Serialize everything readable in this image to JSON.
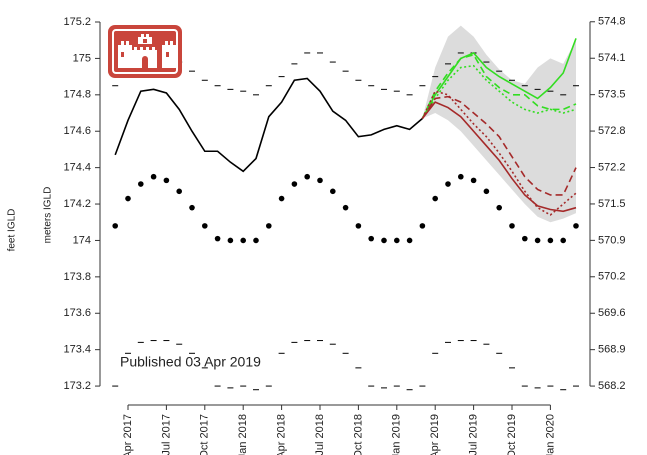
{
  "chart_data": {
    "type": "line",
    "y_label": "meters IGLD",
    "y_label_outer": "feet IGLD",
    "annotation": "Published 03 Apr 2019",
    "categories": [
      null,
      "Apr 2017",
      null,
      null,
      "Jul 2017",
      null,
      null,
      "Oct 2017",
      null,
      null,
      "Jan 2018",
      null,
      null,
      "Apr 2018",
      null,
      null,
      "Jul 2018",
      null,
      null,
      "Oct 2018",
      null,
      null,
      "Jan 2019",
      null,
      null,
      "Apr 2019",
      null,
      null,
      "Jul 2019",
      null,
      null,
      "Oct 2019",
      null,
      null,
      "Jan 2020",
      null,
      null
    ],
    "ylim": [
      173.096,
      175.255
    ],
    "yticks": [
      173.2,
      173.4,
      173.6,
      173.8,
      174.0,
      174.2,
      174.4,
      174.6,
      174.8,
      175.0,
      175.2
    ],
    "y2lim": [
      567.9,
      574.98
    ],
    "y2ticks": [
      {
        "value": 568.241,
        "label": "568.2"
      },
      {
        "value": 568.897,
        "label": "568.9"
      },
      {
        "value": 569.553,
        "label": "569.6"
      },
      {
        "value": 570.21,
        "label": "570.2"
      },
      {
        "value": 570.866,
        "label": "570.9"
      },
      {
        "value": 571.522,
        "label": "571.5"
      },
      {
        "value": 572.178,
        "label": "572.2"
      },
      {
        "value": 572.835,
        "label": "572.8"
      },
      {
        "value": 573.491,
        "label": "573.5"
      },
      {
        "value": 574.147,
        "label": "574.1"
      },
      {
        "value": 574.804,
        "label": "574.8"
      }
    ],
    "band": {
      "color": "#dcdcdc",
      "upper": [
        null,
        null,
        null,
        null,
        null,
        null,
        null,
        null,
        null,
        null,
        null,
        null,
        null,
        null,
        null,
        null,
        null,
        null,
        null,
        null,
        null,
        null,
        null,
        null,
        174.67,
        174.95,
        175.12,
        175.18,
        175.12,
        175.02,
        174.94,
        174.88,
        174.86,
        174.95,
        175.0,
        174.97,
        175.1
      ],
      "lower": [
        null,
        null,
        null,
        null,
        null,
        null,
        null,
        null,
        null,
        null,
        null,
        null,
        null,
        null,
        null,
        null,
        null,
        null,
        null,
        null,
        null,
        null,
        null,
        null,
        174.67,
        174.7,
        174.66,
        174.6,
        174.52,
        174.44,
        174.36,
        174.28,
        174.2,
        174.13,
        174.1,
        174.12,
        174.15
      ]
    },
    "series": [
      {
        "color": "#000000",
        "marker": "dash",
        "values": [
          174.85,
          174.9,
          174.97,
          175.03,
          175.03,
          174.98,
          174.93,
          174.88,
          174.85,
          174.83,
          174.82,
          174.8,
          174.85,
          174.9,
          174.97,
          175.03,
          175.03,
          174.98,
          174.93,
          174.88,
          174.85,
          174.83,
          174.82,
          174.8,
          174.85,
          174.9,
          174.97,
          175.03,
          175.03,
          174.98,
          174.93,
          174.88,
          174.85,
          174.83,
          174.82,
          174.8,
          174.85
        ]
      },
      {
        "color": "#000000",
        "marker": "dash",
        "values": [
          173.2,
          173.38,
          173.44,
          173.45,
          173.45,
          173.43,
          173.38,
          173.3,
          173.2,
          173.19,
          173.2,
          173.18,
          173.2,
          173.38,
          173.44,
          173.45,
          173.45,
          173.43,
          173.38,
          173.3,
          173.2,
          173.19,
          173.2,
          173.18,
          173.2,
          173.38,
          173.44,
          173.45,
          173.45,
          173.43,
          173.38,
          173.3,
          173.2,
          173.19,
          173.2,
          173.18,
          173.2
        ]
      },
      {
        "color": "#000000",
        "marker": "dot",
        "values": [
          174.08,
          174.23,
          174.31,
          174.35,
          174.33,
          174.27,
          174.18,
          174.08,
          174.01,
          174.0,
          174.0,
          174.0,
          174.08,
          174.23,
          174.31,
          174.35,
          174.33,
          174.27,
          174.18,
          174.08,
          174.01,
          174.0,
          174.0,
          174.0,
          174.08,
          174.23,
          174.31,
          174.35,
          174.33,
          174.27,
          174.18,
          174.08,
          174.01,
          174.0,
          174.0,
          174.0,
          174.08
        ]
      },
      {
        "color": "#000000",
        "dash": "solid",
        "values": [
          174.47,
          174.66,
          174.82,
          174.83,
          174.81,
          174.72,
          174.6,
          174.49,
          174.49,
          174.43,
          174.38,
          174.45,
          174.68,
          174.76,
          174.88,
          174.89,
          174.82,
          174.71,
          174.66,
          174.57,
          174.58,
          174.61,
          174.63,
          174.61,
          174.67,
          null,
          null,
          null,
          null,
          null,
          null,
          null,
          null,
          null,
          null,
          null,
          null
        ]
      },
      {
        "color": "#33dd22",
        "dash": "solid",
        "values": [
          null,
          null,
          null,
          null,
          null,
          null,
          null,
          null,
          null,
          null,
          null,
          null,
          null,
          null,
          null,
          null,
          null,
          null,
          null,
          null,
          null,
          null,
          null,
          null,
          174.67,
          174.8,
          174.9,
          175.0,
          175.03,
          174.95,
          174.9,
          174.86,
          174.82,
          174.78,
          174.84,
          174.92,
          175.11
        ]
      },
      {
        "color": "#33dd22",
        "dash": "dashed",
        "values": [
          null,
          null,
          null,
          null,
          null,
          null,
          null,
          null,
          null,
          null,
          null,
          null,
          null,
          null,
          null,
          null,
          null,
          null,
          null,
          null,
          null,
          null,
          null,
          null,
          174.67,
          174.82,
          174.92,
          175.0,
          175.02,
          174.9,
          174.84,
          174.8,
          174.8,
          174.74,
          174.72,
          174.72,
          174.75
        ]
      },
      {
        "color": "#33dd22",
        "dash": "dotted",
        "values": [
          null,
          null,
          null,
          null,
          null,
          null,
          null,
          null,
          null,
          null,
          null,
          null,
          null,
          null,
          null,
          null,
          null,
          null,
          null,
          null,
          null,
          null,
          null,
          null,
          174.67,
          174.78,
          174.88,
          174.95,
          174.96,
          174.88,
          174.82,
          174.76,
          174.72,
          174.7,
          174.72,
          174.7,
          174.72
        ]
      },
      {
        "color": "#a52a2a",
        "dash": "solid",
        "values": [
          null,
          null,
          null,
          null,
          null,
          null,
          null,
          null,
          null,
          null,
          null,
          null,
          null,
          null,
          null,
          null,
          null,
          null,
          null,
          null,
          null,
          null,
          null,
          null,
          174.67,
          174.76,
          174.73,
          174.68,
          174.6,
          174.52,
          174.44,
          174.34,
          174.25,
          174.19,
          174.17,
          174.16,
          174.18
        ]
      },
      {
        "color": "#a52a2a",
        "dash": "dashed",
        "values": [
          null,
          null,
          null,
          null,
          null,
          null,
          null,
          null,
          null,
          null,
          null,
          null,
          null,
          null,
          null,
          null,
          null,
          null,
          null,
          null,
          null,
          null,
          null,
          null,
          174.67,
          174.78,
          174.79,
          174.76,
          174.7,
          174.64,
          174.57,
          174.46,
          174.35,
          174.28,
          174.25,
          174.25,
          174.4
        ]
      },
      {
        "color": "#a52a2a",
        "dash": "dotted",
        "values": [
          null,
          null,
          null,
          null,
          null,
          null,
          null,
          null,
          null,
          null,
          null,
          null,
          null,
          null,
          null,
          null,
          null,
          null,
          null,
          null,
          null,
          null,
          null,
          null,
          174.67,
          174.82,
          174.8,
          174.72,
          174.64,
          174.57,
          174.48,
          174.38,
          174.27,
          174.18,
          174.14,
          174.2,
          174.26
        ]
      }
    ]
  }
}
